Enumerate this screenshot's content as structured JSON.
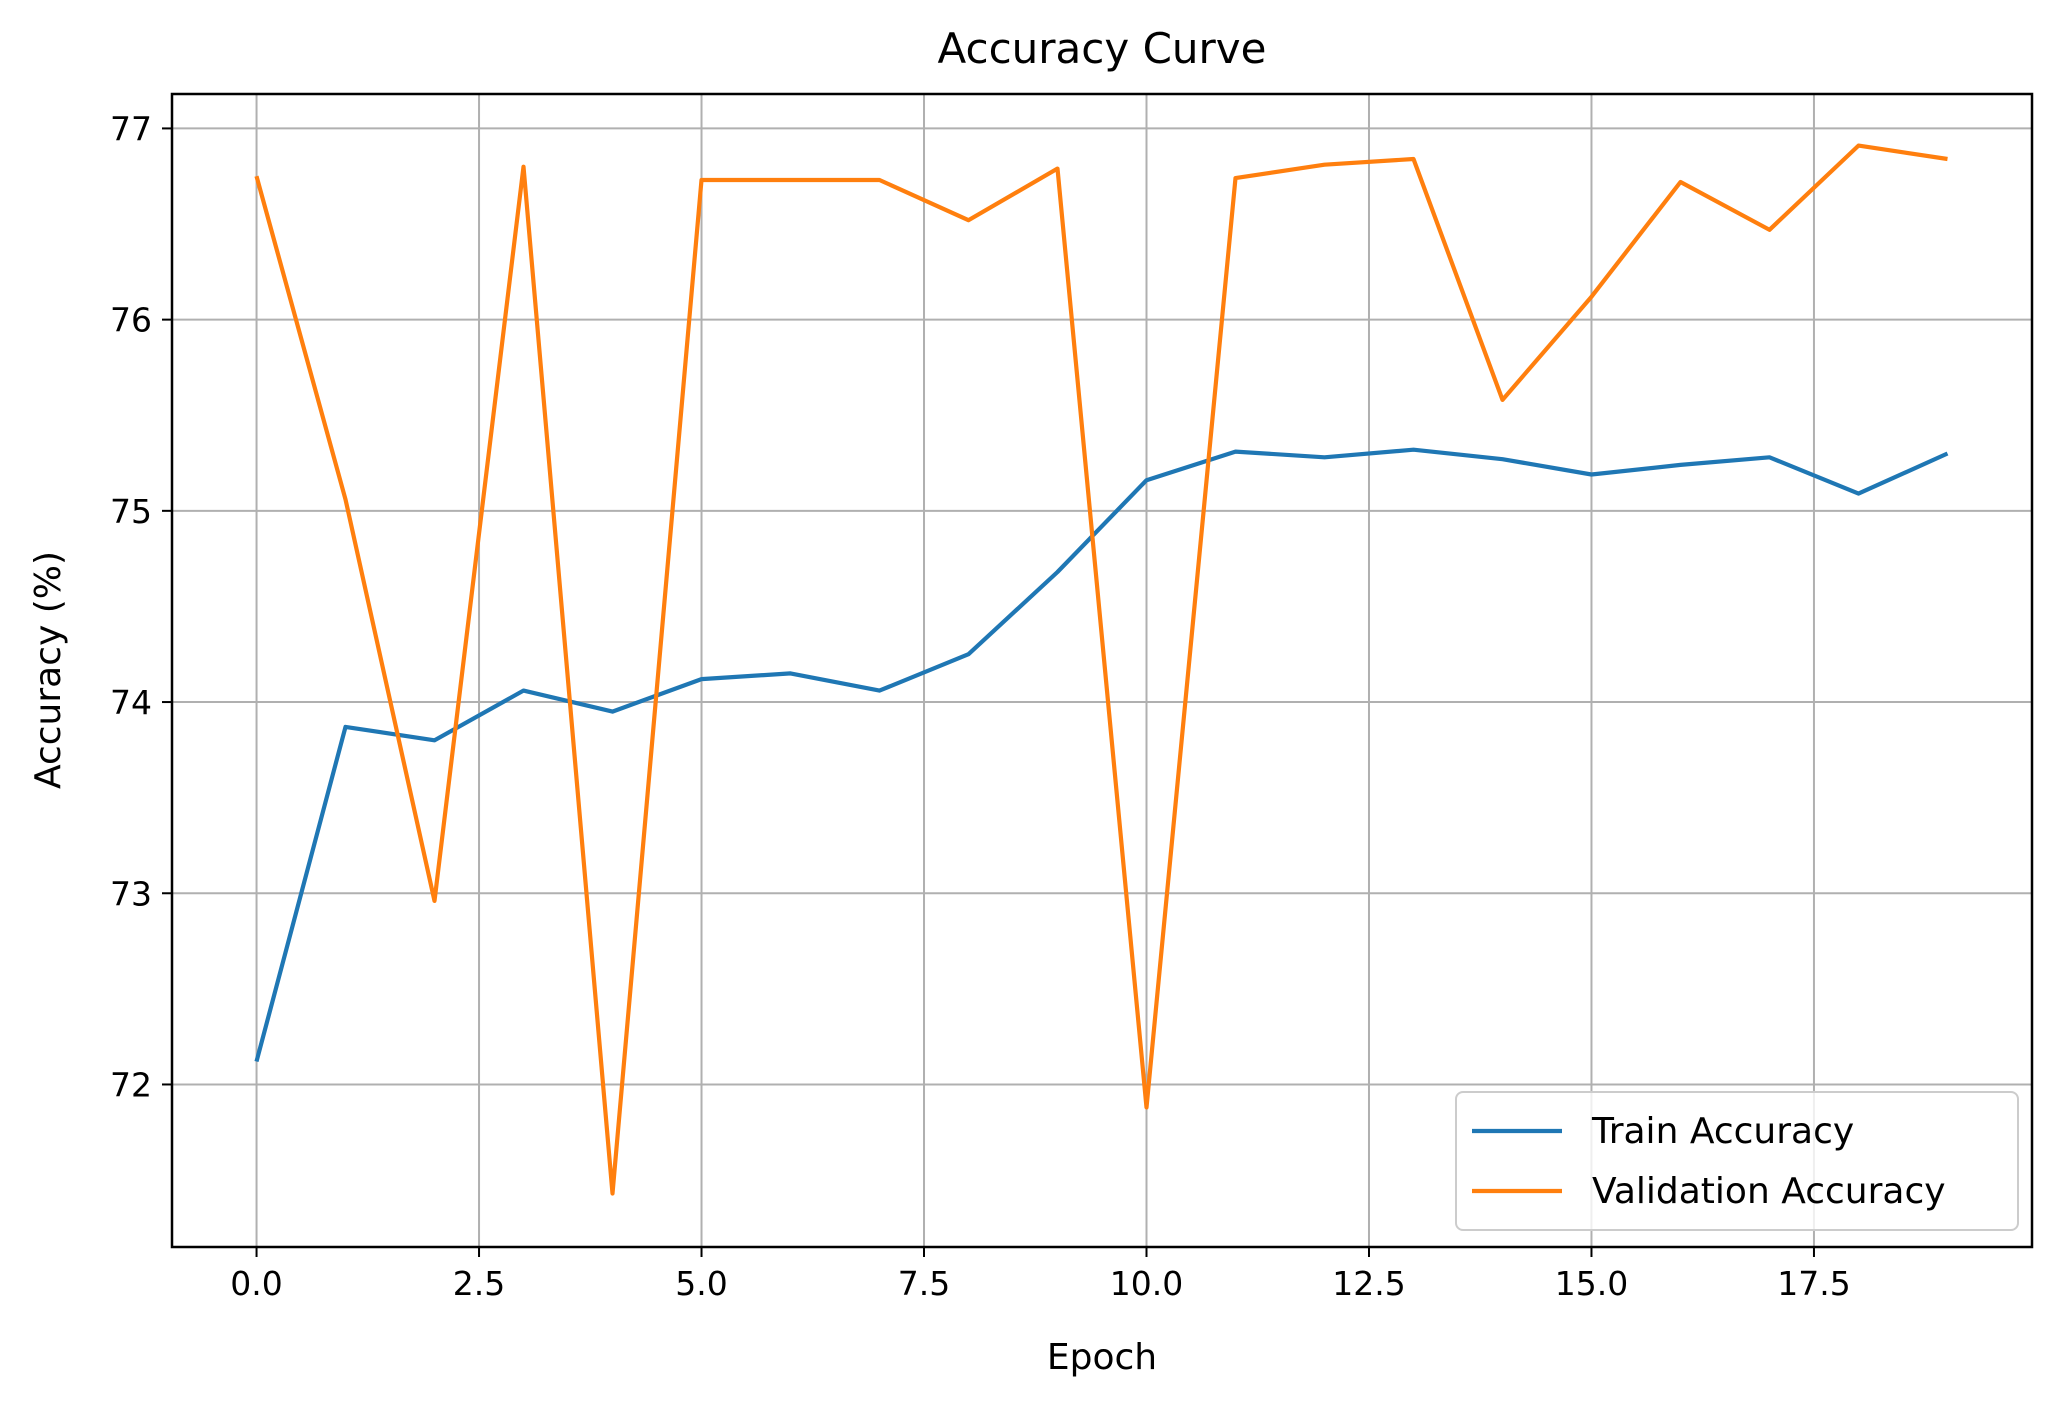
{
  "chart_data": {
    "type": "line",
    "title": "Accuracy Curve",
    "xlabel": "Epoch",
    "ylabel": "Accuracy (%)",
    "xlim": [
      -0.95,
      19.95
    ],
    "ylim": [
      71.15,
      77.18
    ],
    "xticks": [
      0,
      2.5,
      5,
      7.5,
      10,
      12.5,
      15,
      17.5
    ],
    "xtick_labels": [
      "0.0",
      "2.5",
      "5.0",
      "7.5",
      "10.0",
      "12.5",
      "15.0",
      "17.5"
    ],
    "yticks": [
      72,
      73,
      74,
      75,
      76,
      77
    ],
    "ytick_labels": [
      "72",
      "73",
      "74",
      "75",
      "76",
      "77"
    ],
    "grid": true,
    "legend_position": "lower right",
    "x": [
      0,
      1,
      2,
      3,
      4,
      5,
      6,
      7,
      8,
      9,
      10,
      11,
      12,
      13,
      14,
      15,
      16,
      17,
      18,
      19
    ],
    "series": [
      {
        "name": "Train Accuracy",
        "color": "#1f77b4",
        "values": [
          72.12,
          73.87,
          73.8,
          74.06,
          73.95,
          74.12,
          74.15,
          74.06,
          74.25,
          74.68,
          75.16,
          75.31,
          75.28,
          75.32,
          75.27,
          75.19,
          75.24,
          75.28,
          75.09,
          75.3
        ]
      },
      {
        "name": "Validation Accuracy",
        "color": "#ff7f0e",
        "values": [
          76.75,
          75.06,
          72.96,
          76.8,
          71.43,
          76.73,
          76.73,
          76.73,
          76.52,
          76.79,
          71.88,
          76.74,
          76.81,
          76.84,
          75.58,
          76.12,
          76.72,
          76.47,
          76.91,
          76.84
        ]
      }
    ]
  }
}
